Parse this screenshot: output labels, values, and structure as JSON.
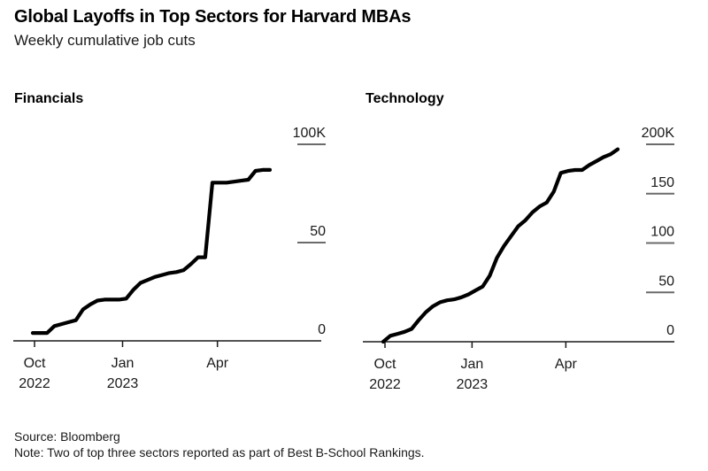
{
  "header": {
    "title": "Global Layoffs in Top Sectors for Harvard MBAs",
    "subtitle": "Weekly cumulative job cuts"
  },
  "footer": {
    "source": "Source: Bloomberg",
    "note": "Note: Two of top three sectors reported as part of Best B-School Rankings."
  },
  "colors": {
    "background": "#ffffff",
    "series_line": "#000000",
    "axis_line": "#1a1a1a",
    "y_tick_line": "#6b6b6b",
    "text": "#1a1a1a"
  },
  "chart_data": [
    {
      "type": "line",
      "title": "Financials",
      "unit": "thousands of cumulative job cuts",
      "x_frequency": "weekly",
      "x_range": "Oct 2022 - late May 2023",
      "ylim": [
        0,
        100
      ],
      "grid": false,
      "legend": "none",
      "y_ticks": [
        {
          "label": "100K",
          "value": 100
        },
        {
          "label": "50",
          "value": 50
        },
        {
          "label": "0",
          "value": 0
        }
      ],
      "x_ticks": [
        {
          "line1": "Oct",
          "line2": "2022"
        },
        {
          "line1": "Jan",
          "line2": "2023"
        },
        {
          "line1": "Apr",
          "line2": ""
        }
      ],
      "values": [
        4,
        4,
        4,
        7.5,
        8.5,
        9.5,
        10.5,
        16,
        18.5,
        20.5,
        21,
        21,
        21,
        21.5,
        26,
        29.5,
        31,
        32.5,
        33.5,
        34.5,
        35,
        36,
        39,
        42.5,
        42.5,
        80.5,
        80.5,
        80.5,
        81,
        81.5,
        82,
        86.5,
        87,
        87
      ]
    },
    {
      "type": "line",
      "title": "Technology",
      "unit": "thousands of cumulative job cuts",
      "x_frequency": "weekly",
      "x_range": "Oct 2022 - late May 2023",
      "ylim": [
        0,
        200
      ],
      "grid": false,
      "legend": "none",
      "y_ticks": [
        {
          "label": "200K",
          "value": 200
        },
        {
          "label": "150",
          "value": 150
        },
        {
          "label": "100",
          "value": 100
        },
        {
          "label": "50",
          "value": 50
        },
        {
          "label": "0",
          "value": 0
        }
      ],
      "x_ticks": [
        {
          "line1": "Oct",
          "line2": "2022"
        },
        {
          "line1": "Jan",
          "line2": "2023"
        },
        {
          "line1": "Apr",
          "line2": ""
        }
      ],
      "values": [
        0,
        6,
        8,
        10,
        13,
        22,
        30,
        36,
        40,
        42,
        43,
        45,
        48,
        52,
        56,
        67,
        85,
        97,
        107,
        117,
        123,
        131,
        137,
        141,
        152,
        171,
        173,
        174,
        174,
        179,
        183,
        187,
        190,
        195
      ]
    }
  ]
}
